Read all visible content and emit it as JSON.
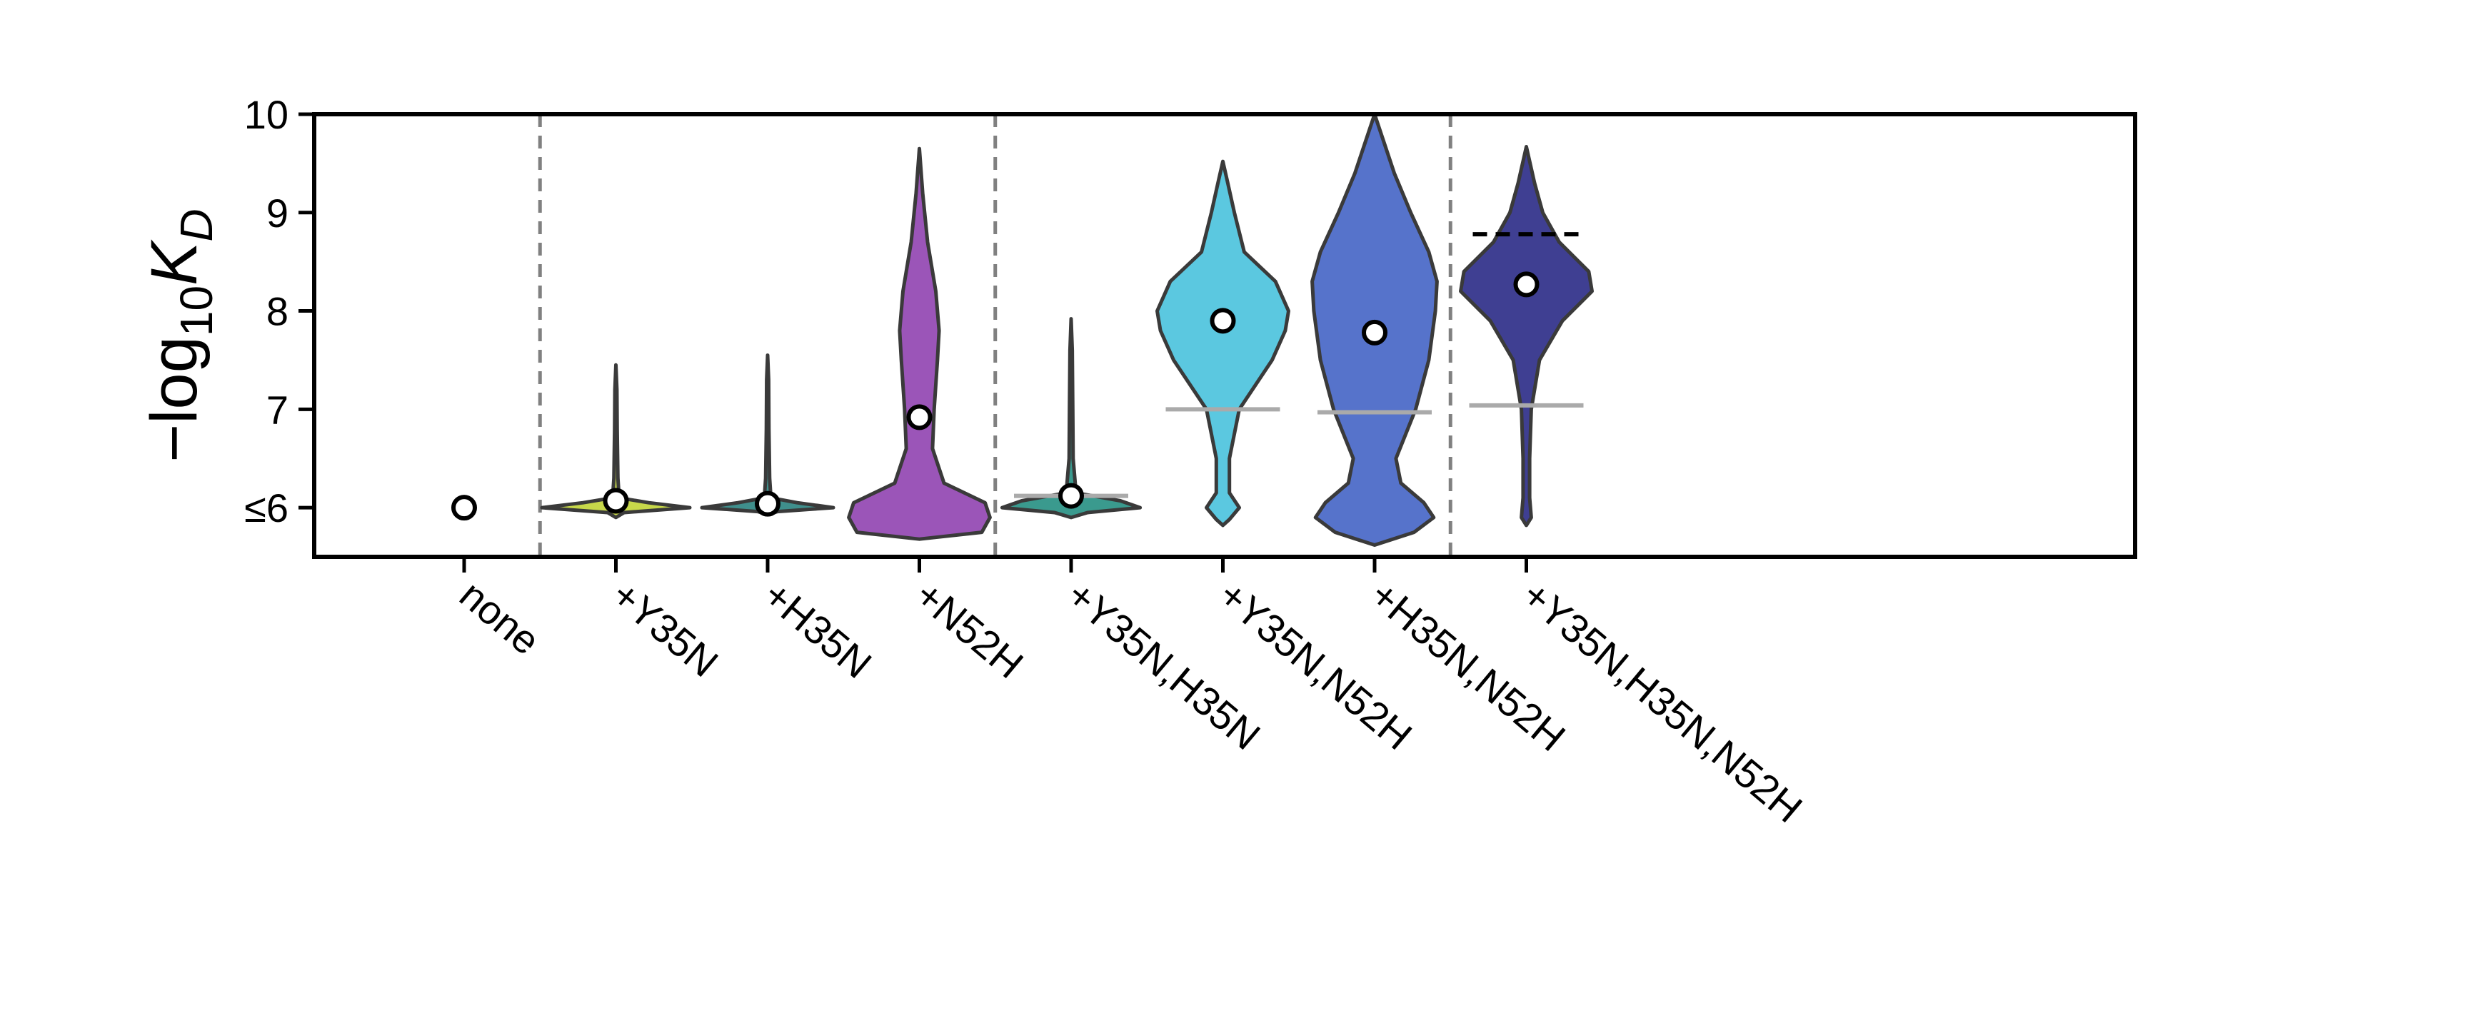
{
  "chart_data": {
    "type": "violin",
    "title": "",
    "xlabel": "",
    "ylabel": {
      "prefix": "−log",
      "subscript": "10",
      "symbol": "K",
      "symbol_subscript": "D"
    },
    "ylim": [
      5.5,
      10
    ],
    "yticks": [
      {
        "value": 6,
        "label": "≤6"
      },
      {
        "value": 7,
        "label": "7"
      },
      {
        "value": 8,
        "label": "8"
      },
      {
        "value": 9,
        "label": "9"
      },
      {
        "value": 10,
        "label": "10"
      }
    ],
    "grid": false,
    "legend": "none",
    "group_separators_after_index": [
      0,
      3,
      6
    ],
    "categories": [
      "none",
      "+Y35N",
      "+H35N",
      "+N52H",
      "+Y35N,H35N",
      "+Y35N,N52H",
      "+H35N,N52H",
      "+Y35N,H35N,N52H"
    ],
    "points": [
      {
        "category": "none",
        "value": 6.0
      },
      {
        "category": "+Y35N",
        "value": 6.07
      },
      {
        "category": "+H35N",
        "value": 6.04
      },
      {
        "category": "+N52H",
        "value": 6.92
      },
      {
        "category": "+Y35N,H35N",
        "value": 6.12
      },
      {
        "category": "+Y35N,N52H",
        "value": 7.9
      },
      {
        "category": "+H35N,N52H",
        "value": 7.78
      },
      {
        "category": "+Y35N,H35N,N52H",
        "value": 8.27
      }
    ],
    "grey_reference_lines": [
      {
        "category": "+Y35N,H35N",
        "value": 6.12
      },
      {
        "category": "+Y35N,N52H",
        "value": 7.0
      },
      {
        "category": "+H35N,N52H",
        "value": 6.97
      },
      {
        "category": "+Y35N,H35N,N52H",
        "value": 7.04
      }
    ],
    "black_dashed_reference_lines": [
      {
        "category": "+Y35N,H35N,N52H",
        "value": 8.78
      }
    ],
    "violins": [
      {
        "category": "none",
        "color": null,
        "density": []
      },
      {
        "category": "+Y35N",
        "color": "#c7d84a",
        "density": [
          [
            5.9,
            0
          ],
          [
            5.95,
            0.05
          ],
          [
            6.0,
            0.45
          ],
          [
            6.05,
            0.2
          ],
          [
            6.1,
            0.02
          ],
          [
            6.3,
            0.012
          ],
          [
            6.8,
            0.008
          ],
          [
            7.2,
            0.006
          ],
          [
            7.45,
            0
          ]
        ]
      },
      {
        "category": "+H35N",
        "color": "#3f8f8c",
        "density": [
          [
            5.93,
            0
          ],
          [
            5.96,
            0.06
          ],
          [
            6.0,
            0.4
          ],
          [
            6.05,
            0.18
          ],
          [
            6.1,
            0.02
          ],
          [
            6.3,
            0.012
          ],
          [
            6.8,
            0.008
          ],
          [
            7.3,
            0.006
          ],
          [
            7.55,
            0
          ]
        ]
      },
      {
        "category": "+N52H",
        "color": "#9b55b8",
        "density": [
          [
            5.68,
            0
          ],
          [
            5.75,
            0.38
          ],
          [
            5.9,
            0.43
          ],
          [
            6.05,
            0.4
          ],
          [
            6.25,
            0.15
          ],
          [
            6.6,
            0.08
          ],
          [
            7.0,
            0.09
          ],
          [
            7.5,
            0.11
          ],
          [
            7.8,
            0.12
          ],
          [
            8.2,
            0.1
          ],
          [
            8.7,
            0.05
          ],
          [
            9.2,
            0.02
          ],
          [
            9.65,
            0
          ]
        ]
      },
      {
        "category": "+Y35N,H35N",
        "color": "#3a9a8e",
        "density": [
          [
            5.9,
            0
          ],
          [
            5.95,
            0.1
          ],
          [
            6.0,
            0.42
          ],
          [
            6.07,
            0.3
          ],
          [
            6.15,
            0.03
          ],
          [
            6.5,
            0.012
          ],
          [
            7.0,
            0.01
          ],
          [
            7.6,
            0.007
          ],
          [
            7.92,
            0
          ]
        ]
      },
      {
        "category": "+Y35N,N52H",
        "color": "#5bc8e0",
        "density": [
          [
            5.82,
            0
          ],
          [
            5.88,
            0.04
          ],
          [
            6.0,
            0.1
          ],
          [
            6.15,
            0.04
          ],
          [
            6.5,
            0.04
          ],
          [
            7.0,
            0.1
          ],
          [
            7.5,
            0.3
          ],
          [
            7.8,
            0.38
          ],
          [
            8.0,
            0.4
          ],
          [
            8.3,
            0.32
          ],
          [
            8.6,
            0.13
          ],
          [
            9.0,
            0.07
          ],
          [
            9.3,
            0.03
          ],
          [
            9.52,
            0
          ]
        ]
      },
      {
        "category": "+H35N,N52H",
        "color": "#5673cb",
        "density": [
          [
            5.62,
            0
          ],
          [
            5.75,
            0.24
          ],
          [
            5.9,
            0.36
          ],
          [
            6.05,
            0.3
          ],
          [
            6.25,
            0.16
          ],
          [
            6.5,
            0.13
          ],
          [
            7.0,
            0.25
          ],
          [
            7.5,
            0.33
          ],
          [
            8.0,
            0.37
          ],
          [
            8.3,
            0.38
          ],
          [
            8.6,
            0.33
          ],
          [
            9.0,
            0.22
          ],
          [
            9.4,
            0.12
          ],
          [
            9.75,
            0.05
          ],
          [
            10.0,
            0
          ]
        ]
      },
      {
        "category": "+Y35N,H35N,N52H",
        "color": "#3f3f92",
        "density": [
          [
            5.82,
            0
          ],
          [
            5.9,
            0.03
          ],
          [
            6.1,
            0.02
          ],
          [
            6.5,
            0.02
          ],
          [
            7.0,
            0.03
          ],
          [
            7.5,
            0.08
          ],
          [
            7.9,
            0.22
          ],
          [
            8.2,
            0.4
          ],
          [
            8.4,
            0.38
          ],
          [
            8.7,
            0.2
          ],
          [
            9.0,
            0.1
          ],
          [
            9.3,
            0.05
          ],
          [
            9.67,
            0
          ]
        ]
      }
    ]
  }
}
